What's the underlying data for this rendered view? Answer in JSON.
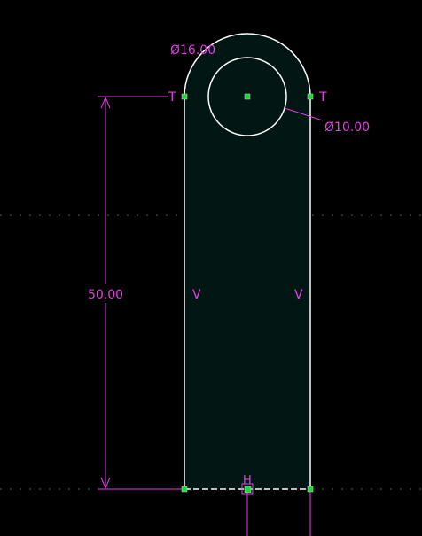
{
  "sketch": {
    "colors": {
      "background": "#000000",
      "region_fill": "#021614",
      "geometry": "#ffffff",
      "dimension": "#e040e0",
      "centerline": "#2e6f5c",
      "point": "#2ecc40"
    },
    "dimensions": {
      "arc_diameter": "Ø16.00",
      "hole_diameter": "Ø10.00",
      "height": "50.00"
    },
    "constraints": {
      "tangent_left": "T",
      "tangent_right": "T",
      "vertical_left": "V",
      "vertical_right": "V",
      "horizontal_bottom": "H"
    }
  }
}
